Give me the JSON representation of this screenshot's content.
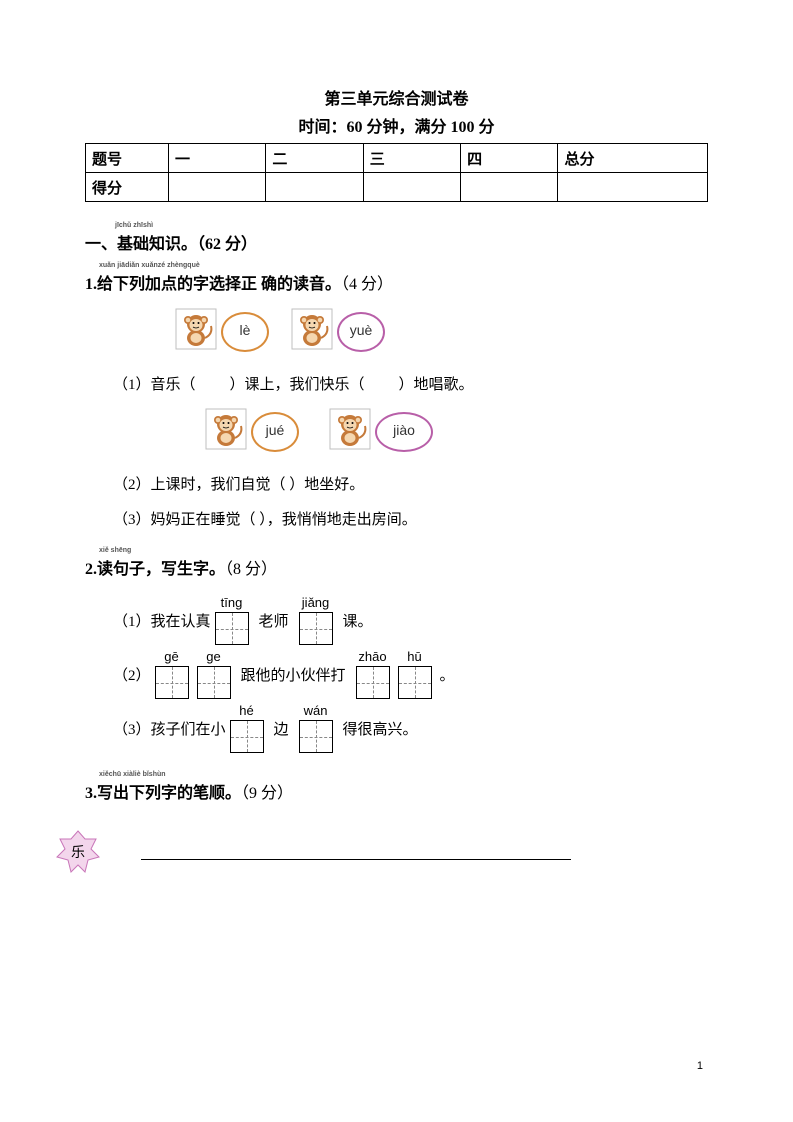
{
  "header": {
    "title": "第三单元综合测试卷",
    "subtitle": "时间：60 分钟，满分 100 分"
  },
  "score_table": {
    "r1": [
      "题号",
      "一",
      "二",
      "三",
      "四",
      "总分"
    ],
    "r2": [
      "得分",
      "",
      "",
      "",
      "",
      ""
    ]
  },
  "section1": {
    "heading": "一、基础知识。（62 分）",
    "ruby": "jīchǔ zhīshì",
    "q1": {
      "heading": "1.给下列加点的字选择正 确的读音。",
      "points": "（4 分）",
      "ruby": "xuǎn jiādiǎn xuǎnzé zhèngquè",
      "choices1": {
        "a": "lè",
        "b": "yuè"
      },
      "line1_pre": "（1）音乐（",
      "line1_mid": "）课上，我们快乐（",
      "line1_end": "）地唱歌。",
      "choices2": {
        "a": "jué",
        "b": "jiào"
      },
      "line2": "（2）上课时，我们自觉（       ）地坐好。",
      "line3": "（3）妈妈正在睡觉（       ），我悄悄地走出房间。"
    },
    "q2": {
      "heading": "2.读句子，写生字。",
      "points": "（8 分）",
      "ruby": "xiě shēng",
      "l1_pre": "（1）我在认真",
      "l1_py1": "tīng",
      "l1_mid": "老师",
      "l1_py2": "jiǎng",
      "l1_end": "课。",
      "l2_py1": "gē",
      "l2_py2": "ge",
      "l2_mid": "跟他的小伙伴打",
      "l2_py3": "zhāo",
      "l2_py4": "hū",
      "l2_end": "。",
      "l2_pre": "（2）",
      "l3_pre": "（3）孩子们在小",
      "l3_py1": "hé",
      "l3_mid": "边",
      "l3_py2": "wán",
      "l3_end": "得很高兴。"
    },
    "q3": {
      "heading": "3.写出下列字的笔顺。",
      "points": "（9 分）",
      "ruby": "xiěchū xiàliè bǐshùn",
      "char": "乐"
    }
  },
  "colors": {
    "circle_orange": "#d98c3a",
    "circle_purple": "#b85fa8",
    "star_fill": "#f3d6ec",
    "star_stroke": "#c874b8",
    "monkey_body": "#c57a3a",
    "monkey_face": "#f5d7b0",
    "monkey_box": "#bfbfbf"
  },
  "pagenum": "1"
}
